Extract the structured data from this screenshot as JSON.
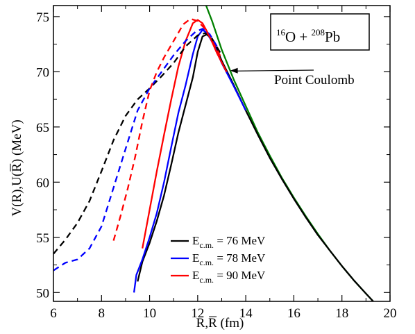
{
  "chart_data": {
    "type": "line",
    "xlabel": "R,R̄ (fm)",
    "xlabel_parts": {
      "R": "R",
      "comma": ",",
      "Rbar": "R",
      "unit": " (fm)"
    },
    "ylabel": "V(R),U(R̄) (MeV)",
    "ylabel_parts": {
      "pre": "V(R),U(",
      "Rbar": "R",
      "post": ") (MeV)"
    },
    "xlim": [
      6,
      20
    ],
    "ylim": [
      49.2,
      76
    ],
    "x_ticks": [
      6,
      8,
      10,
      12,
      14,
      16,
      18,
      20
    ],
    "y_ticks": [
      50,
      55,
      60,
      65,
      70,
      75
    ],
    "x_tick_labels": [
      "6",
      "8",
      "10",
      "12",
      "14",
      "16",
      "18",
      "20"
    ],
    "y_tick_labels": [
      "50",
      "55",
      "60",
      "65",
      "70",
      "75"
    ],
    "grid": false,
    "legend_position": "bottom-center",
    "reaction_label": {
      "A1": "16",
      "el1": "O",
      "plus": " + ",
      "A2": "208",
      "el2": "Pb"
    },
    "point_coulomb_label": "Point Coulomb",
    "point_coulomb_arrow_target": [
      13.35,
      70.1
    ],
    "colors": {
      "e76": "#000000",
      "e78": "#0000ff",
      "e90": "#ff0000",
      "coulomb": "#008000"
    },
    "legend": [
      {
        "sym": "E",
        "sub": "c.m.",
        "rest": " = 76 MeV",
        "color": "#000000"
      },
      {
        "sym": "E",
        "sub": "c.m.",
        "rest": " = 78 MeV",
        "color": "#0000ff"
      },
      {
        "sym": "E",
        "sub": "c.m.",
        "rest": " = 90 MeV",
        "color": "#ff0000"
      }
    ],
    "series": [
      {
        "key": "coulomb",
        "style": "solid",
        "color": "#008000",
        "points": [
          [
            12.35,
            76.0
          ],
          [
            12.6,
            74.6
          ],
          [
            13.0,
            72.0
          ],
          [
            13.5,
            69.3
          ],
          [
            14.0,
            66.9
          ],
          [
            14.5,
            64.5
          ],
          [
            15.0,
            62.4
          ],
          [
            15.5,
            60.4
          ],
          [
            16.0,
            58.6
          ],
          [
            16.5,
            56.9
          ],
          [
            17.0,
            55.3
          ],
          [
            17.5,
            53.8
          ],
          [
            18.0,
            52.4
          ],
          [
            18.5,
            51.1
          ],
          [
            19.0,
            49.9
          ],
          [
            19.3,
            49.2
          ]
        ]
      },
      {
        "key": "e76_solid",
        "style": "solid",
        "color": "#000000",
        "points": [
          [
            9.5,
            51.0
          ],
          [
            9.7,
            52.8
          ],
          [
            10.0,
            54.5
          ],
          [
            10.3,
            56.5
          ],
          [
            10.6,
            58.8
          ],
          [
            10.9,
            61.6
          ],
          [
            11.2,
            64.5
          ],
          [
            11.5,
            67.0
          ],
          [
            11.8,
            69.5
          ],
          [
            12.0,
            71.8
          ],
          [
            12.2,
            73.2
          ],
          [
            12.4,
            73.4
          ],
          [
            12.7,
            72.5
          ],
          [
            13.0,
            71.0
          ],
          [
            13.5,
            68.8
          ],
          [
            14.0,
            66.5
          ],
          [
            14.5,
            64.3
          ],
          [
            15.0,
            62.2
          ],
          [
            15.5,
            60.3
          ],
          [
            16.0,
            58.5
          ],
          [
            16.5,
            56.8
          ],
          [
            17.0,
            55.2
          ],
          [
            17.5,
            53.8
          ],
          [
            18.0,
            52.4
          ],
          [
            18.5,
            51.1
          ],
          [
            19.0,
            49.9
          ],
          [
            19.3,
            49.2
          ]
        ]
      },
      {
        "key": "e78_solid",
        "style": "solid",
        "color": "#0000ff",
        "points": [
          [
            9.35,
            50.0
          ],
          [
            9.45,
            51.6
          ],
          [
            9.7,
            53.0
          ],
          [
            10.0,
            55.0
          ],
          [
            10.3,
            57.2
          ],
          [
            10.6,
            60.0
          ],
          [
            10.9,
            63.2
          ],
          [
            11.2,
            66.3
          ],
          [
            11.5,
            68.8
          ],
          [
            11.8,
            71.6
          ],
          [
            12.0,
            73.2
          ],
          [
            12.2,
            73.8
          ],
          [
            12.4,
            73.5
          ],
          [
            12.7,
            72.3
          ],
          [
            13.0,
            70.8
          ],
          [
            13.5,
            68.7
          ],
          [
            14.0,
            66.5
          ]
        ]
      },
      {
        "key": "e90_solid",
        "style": "solid",
        "color": "#ff0000",
        "points": [
          [
            9.7,
            54.0
          ],
          [
            10.0,
            57.5
          ],
          [
            10.3,
            61.0
          ],
          [
            10.6,
            64.3
          ],
          [
            10.9,
            67.5
          ],
          [
            11.2,
            70.5
          ],
          [
            11.5,
            72.8
          ],
          [
            11.8,
            74.4
          ],
          [
            12.0,
            74.7
          ],
          [
            12.2,
            74.4
          ],
          [
            12.5,
            73.2
          ],
          [
            12.8,
            71.7
          ],
          [
            13.2,
            70.0
          ]
        ]
      },
      {
        "key": "e76_dashed",
        "style": "dashed",
        "color": "#000000",
        "points": [
          [
            6.0,
            53.5
          ],
          [
            6.5,
            54.8
          ],
          [
            7.0,
            56.3
          ],
          [
            7.5,
            58.3
          ],
          [
            8.0,
            61.0
          ],
          [
            8.5,
            63.8
          ],
          [
            9.0,
            66.0
          ],
          [
            9.5,
            67.5
          ],
          [
            10.0,
            68.5
          ],
          [
            10.5,
            69.6
          ],
          [
            11.0,
            70.8
          ],
          [
            11.5,
            72.3
          ],
          [
            12.0,
            73.3
          ],
          [
            12.3,
            73.5
          ],
          [
            12.6,
            73.0
          ],
          [
            13.0,
            71.5
          ]
        ]
      },
      {
        "key": "e78_dashed",
        "style": "dashed",
        "color": "#0000ff",
        "points": [
          [
            6.0,
            52.0
          ],
          [
            6.5,
            52.7
          ],
          [
            7.0,
            53.0
          ],
          [
            7.5,
            54.0
          ],
          [
            8.0,
            56.0
          ],
          [
            8.5,
            59.5
          ],
          [
            9.0,
            63.0
          ],
          [
            9.5,
            66.5
          ],
          [
            10.0,
            68.5
          ],
          [
            10.5,
            70.0
          ],
          [
            11.0,
            71.5
          ],
          [
            11.5,
            72.8
          ],
          [
            11.9,
            73.6
          ],
          [
            12.2,
            73.9
          ],
          [
            12.5,
            73.4
          ],
          [
            12.8,
            72.3
          ]
        ]
      },
      {
        "key": "e90_dashed",
        "style": "dashed",
        "color": "#ff0000",
        "points": [
          [
            8.5,
            54.7
          ],
          [
            8.8,
            57.0
          ],
          [
            9.1,
            59.5
          ],
          [
            9.4,
            62.3
          ],
          [
            9.7,
            65.5
          ],
          [
            10.0,
            68.3
          ],
          [
            10.3,
            70.0
          ],
          [
            10.6,
            71.3
          ],
          [
            11.0,
            72.8
          ],
          [
            11.4,
            74.3
          ],
          [
            11.7,
            74.8
          ],
          [
            12.0,
            74.6
          ],
          [
            12.3,
            73.9
          ],
          [
            12.7,
            72.4
          ],
          [
            13.0,
            71.2
          ]
        ]
      }
    ]
  }
}
